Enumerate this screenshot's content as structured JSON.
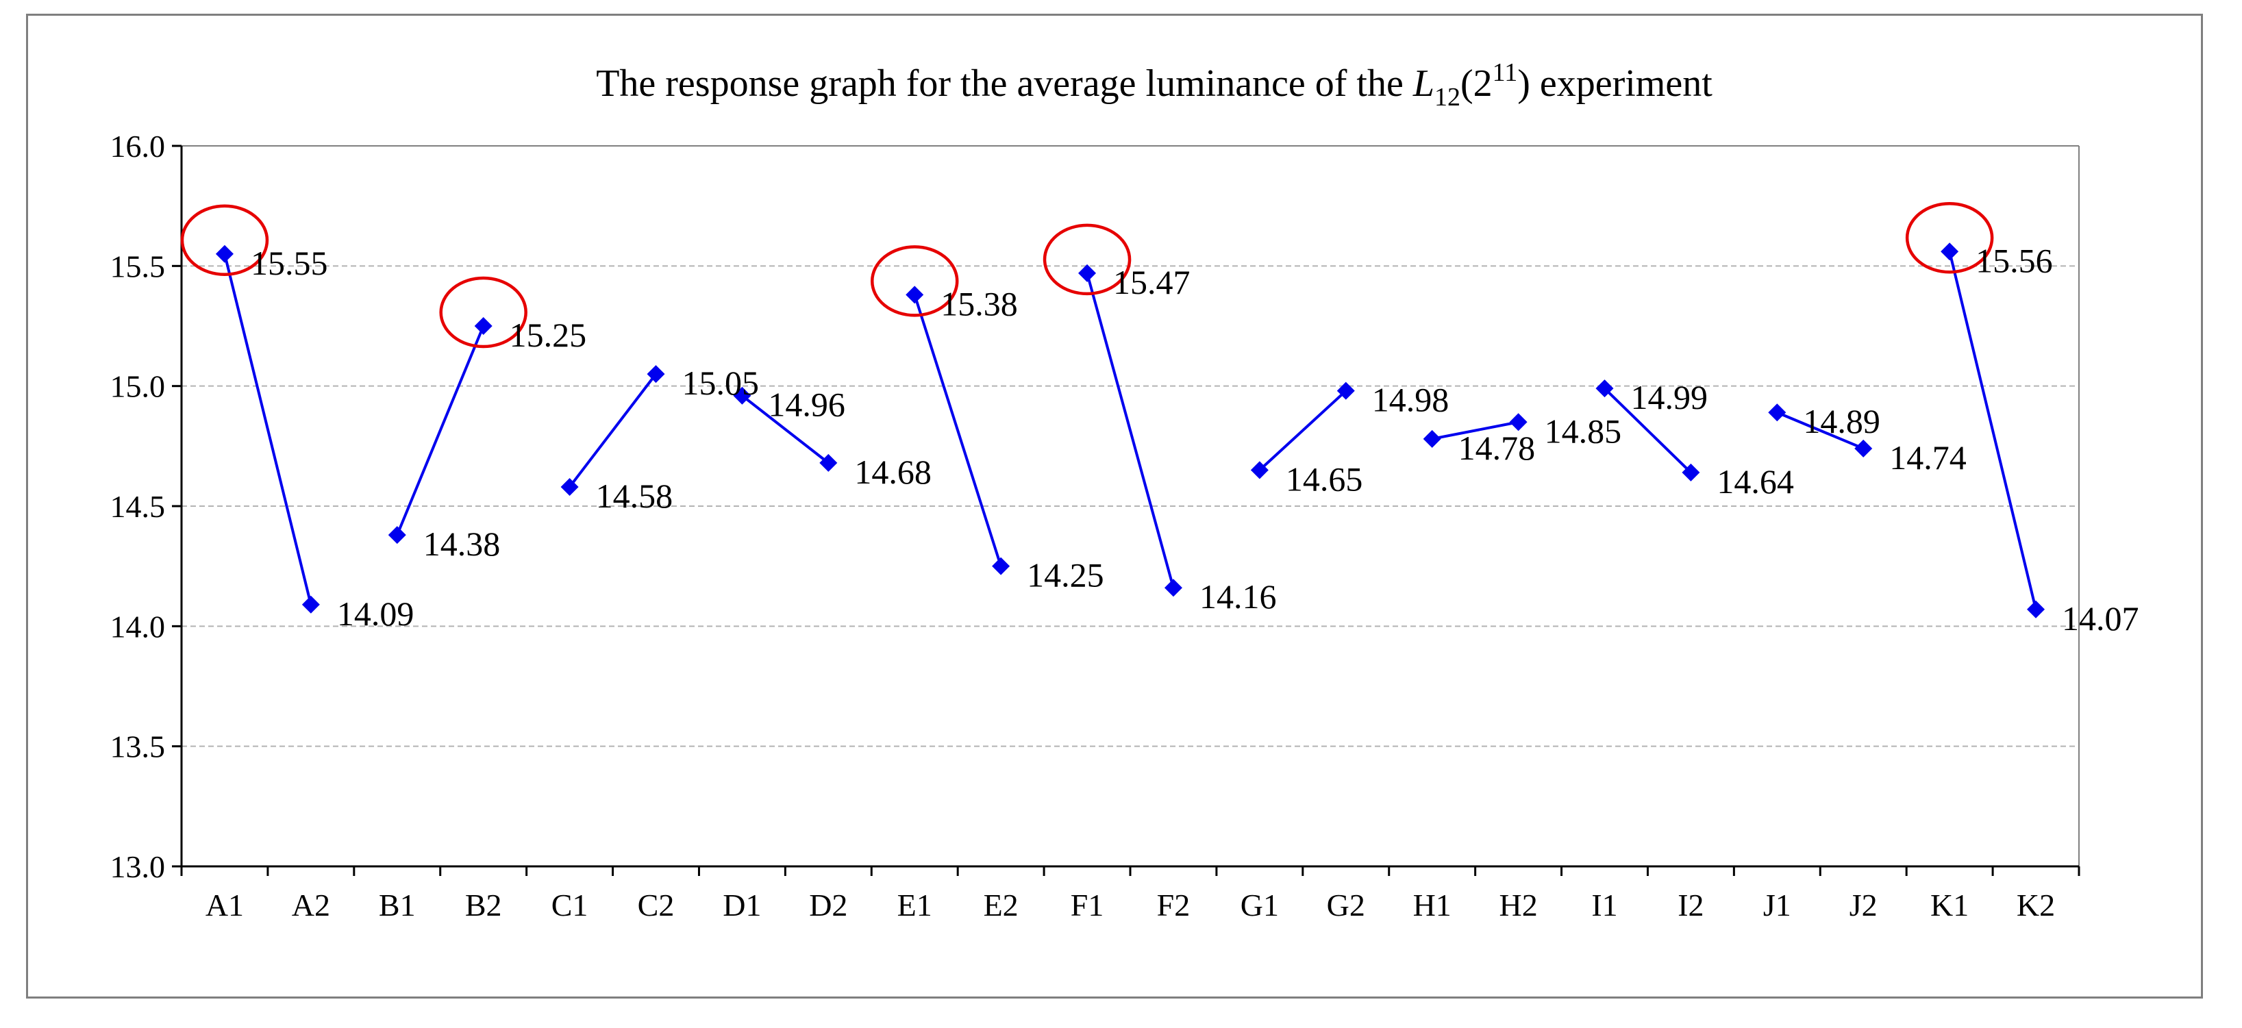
{
  "chart_data": {
    "type": "line",
    "title": {
      "prefix": "The response graph for the average luminance of the ",
      "symbol": "L",
      "subscript": "12",
      "paren_open": "(2",
      "superscript": "11",
      "suffix": ") experiment"
    },
    "xlabel": "",
    "ylabel": "",
    "ylim": [
      13.0,
      16.0
    ],
    "ytick_step": 0.5,
    "y_ticks": [
      "13.0",
      "13.5",
      "14.0",
      "14.5",
      "15.0",
      "15.5",
      "16.0"
    ],
    "categories": [
      "A1",
      "A2",
      "B1",
      "B2",
      "C1",
      "C2",
      "D1",
      "D2",
      "E1",
      "E2",
      "F1",
      "F2",
      "G1",
      "G2",
      "H1",
      "H2",
      "I1",
      "I2",
      "J1",
      "J2",
      "K1",
      "K2"
    ],
    "values": [
      15.55,
      14.09,
      14.38,
      15.25,
      14.58,
      15.05,
      14.96,
      14.68,
      15.38,
      14.25,
      15.47,
      14.16,
      14.65,
      14.98,
      14.78,
      14.85,
      14.99,
      14.64,
      14.89,
      14.74,
      15.56,
      14.07
    ],
    "value_labels": [
      "15.55",
      "14.09",
      "14.38",
      "15.25",
      "14.58",
      "15.05",
      "14.96",
      "14.68",
      "15.38",
      "14.25",
      "15.47",
      "14.16",
      "14.65",
      "14.98",
      "14.78",
      "14.85",
      "14.99",
      "14.64",
      "14.89",
      "14.74",
      "15.56",
      "14.07"
    ],
    "segments": [
      [
        0,
        1
      ],
      [
        2,
        3
      ],
      [
        4,
        5
      ],
      [
        6,
        7
      ],
      [
        8,
        9
      ],
      [
        10,
        11
      ],
      [
        12,
        13
      ],
      [
        14,
        15
      ],
      [
        16,
        17
      ],
      [
        18,
        19
      ],
      [
        20,
        21
      ]
    ],
    "highlighted": [
      "A1",
      "B2",
      "E1",
      "F1",
      "K1"
    ],
    "grid": true,
    "legend": "none",
    "colors": {
      "series": "#0000ee",
      "highlight": "#e60000",
      "grid": "#b3b3b3",
      "axis": "#000000"
    }
  }
}
